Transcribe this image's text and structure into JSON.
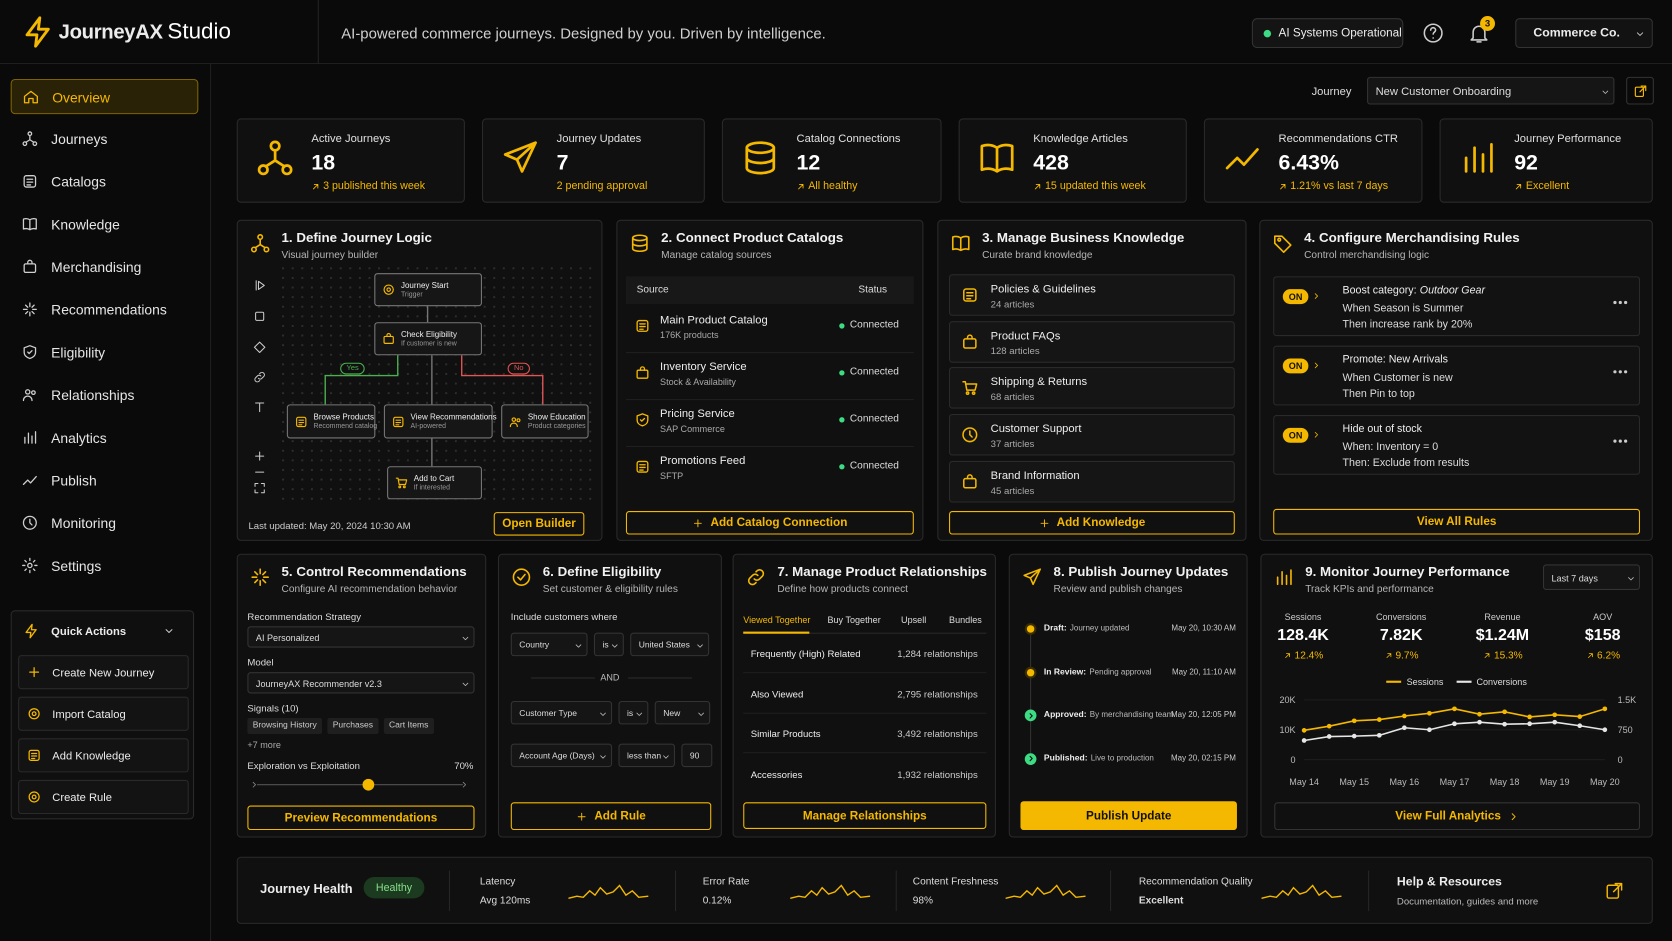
{
  "header": {
    "brand": "JourneyAX",
    "product": "Studio",
    "tagline": "AI-powered commerce journeys. Designed by you. Driven by intelligence.",
    "status": "AI Systems Operational",
    "notifications": "3",
    "account": "Commerce Co."
  },
  "sidebar": {
    "nav": [
      "Overview",
      "Journeys",
      "Catalogs",
      "Knowledge",
      "Merchandising",
      "Recommendations",
      "Eligibility",
      "Relationships",
      "Analytics",
      "Publish",
      "Monitoring",
      "Settings"
    ],
    "quick_actions": {
      "title": "Quick Actions",
      "items": [
        "Create New Journey",
        "Import Catalog",
        "Add Knowledge",
        "Create Rule"
      ]
    }
  },
  "journey_selector": {
    "label": "Journey",
    "value": "New Customer Onboarding"
  },
  "kpis": [
    {
      "label": "Active Journeys",
      "value": "18",
      "note": "3 published this week"
    },
    {
      "label": "Journey Updates",
      "value": "7",
      "note": "2 pending approval"
    },
    {
      "label": "Catalog Connections",
      "value": "12",
      "note": "All healthy"
    },
    {
      "label": "Knowledge Articles",
      "value": "428",
      "note": "15 updated this week"
    },
    {
      "label": "Recommendations CTR",
      "value": "6.43%",
      "note": "1.21% vs last 7 days"
    },
    {
      "label": "Journey Performance",
      "value": "92",
      "note": "Excellent"
    }
  ],
  "journey_logic": {
    "title": "1. Define Journey Logic",
    "subtitle": "Visual journey builder",
    "nodes": [
      {
        "title": "Journey Start",
        "subtitle": "Trigger"
      },
      {
        "title": "Check Eligibility",
        "subtitle": "If customer is new"
      },
      {
        "title": "Browse Products",
        "subtitle": "Recommend catalog"
      },
      {
        "title": "View Recommendations",
        "subtitle": "AI-powered"
      },
      {
        "title": "Show Education",
        "subtitle": "Product categories"
      },
      {
        "title": "Add to Cart",
        "subtitle": "If interested"
      }
    ],
    "edge_labels": [
      "Yes",
      "No"
    ],
    "updated": "Last updated: May 20, 2024 10:30 AM",
    "button": "Open Builder"
  },
  "catalogs": {
    "title": "2. Connect Product Catalogs",
    "subtitle": "Manage catalog sources",
    "columns": [
      "Source",
      "Status"
    ],
    "rows": [
      {
        "name": "Main Product Catalog",
        "detail": "176K products",
        "status": "Connected"
      },
      {
        "name": "Inventory Service",
        "detail": "Stock & Availability",
        "status": "Connected"
      },
      {
        "name": "Pricing Service",
        "detail": "SAP Commerce",
        "status": "Connected"
      },
      {
        "name": "Promotions Feed",
        "detail": "SFTP",
        "status": "Connected"
      }
    ],
    "button": "Add Catalog Connection"
  },
  "knowledge": {
    "title": "3. Manage Business Knowledge",
    "subtitle": "Curate brand knowledge",
    "items": [
      {
        "name": "Policies & Guidelines",
        "count": "24 articles"
      },
      {
        "name": "Product FAQs",
        "count": "128 articles"
      },
      {
        "name": "Shipping & Returns",
        "count": "68 articles"
      },
      {
        "name": "Customer Support",
        "count": "37 articles"
      },
      {
        "name": "Brand Information",
        "count": "45 articles"
      }
    ],
    "button": "Add Knowledge"
  },
  "merchandising": {
    "title": "4. Configure Merchandising Rules",
    "subtitle": "Control merchandising logic",
    "rules": [
      {
        "toggle": "ON",
        "title": "Boost category:",
        "title_emphasis": "Outdoor Gear",
        "condition": "When Season is Summer",
        "action": "Then increase rank by 20%"
      },
      {
        "toggle": "ON",
        "title": "Promote: New Arrivals",
        "condition": "When Customer is new",
        "action": "Then Pin to top"
      },
      {
        "toggle": "ON",
        "title": "Hide out of stock",
        "condition": "When: Inventory = 0",
        "action": "Then: Exclude from results"
      }
    ],
    "button": "View All Rules"
  },
  "recommendations": {
    "title": "5. Control Recommendations",
    "subtitle": "Configure AI recommendation behavior",
    "strategy_label": "Recommendation Strategy",
    "strategy": "AI Personalized",
    "model_label": "Model",
    "model": "JourneyAX Recommender v2.3",
    "signals_label": "Signals (10)",
    "signals": [
      "Browsing History",
      "Purchases",
      "Cart Items"
    ],
    "more": "+7 more",
    "balance_label": "Exploration vs Exploitation",
    "balance": "70%",
    "button": "Preview Recommendations"
  },
  "eligibility": {
    "title": "6. Define Eligibility",
    "subtitle": "Set customer & eligibility rules",
    "intro": "Include customers where",
    "conditions": [
      [
        "Country",
        "is",
        "United States"
      ],
      [
        "Customer Type",
        "is",
        "New"
      ],
      [
        "Account Age (Days)",
        "less than",
        "90"
      ]
    ],
    "joiner": "AND",
    "button": "Add Rule"
  },
  "relationships": {
    "title": "7. Manage Product Relationships",
    "subtitle": "Define how products connect",
    "tabs": [
      "Viewed Together",
      "Buy Together",
      "Upsell",
      "Bundles"
    ],
    "rows": [
      {
        "name": "Frequently (High) Related",
        "count": "1,284 relationships"
      },
      {
        "name": "Also Viewed",
        "count": "2,795 relationships"
      },
      {
        "name": "Similar Products",
        "count": "3,492 relationships"
      },
      {
        "name": "Accessories",
        "count": "1,932 relationships"
      }
    ],
    "button": "Manage Relationships"
  },
  "publish": {
    "title": "8. Publish Journey Updates",
    "subtitle": "Review and publish changes",
    "steps": [
      {
        "status": "Draft:",
        "detail": "Journey updated",
        "time": "May 20, 10:30 AM"
      },
      {
        "status": "In Review:",
        "detail": "Pending approval",
        "time": "May 20, 11:10 AM"
      },
      {
        "status": "Approved:",
        "detail": "By merchandising team",
        "time": "May 20, 12:05 PM"
      },
      {
        "status": "Published:",
        "detail": "Live to production",
        "time": "May 20, 02:15 PM"
      }
    ],
    "button": "Publish Update"
  },
  "performance": {
    "title": "9. Monitor Journey Performance",
    "subtitle": "Track KPIs and performance",
    "period": "Last 7 days",
    "stats": [
      {
        "label": "Sessions",
        "value": "128.4K",
        "change": "12.4%"
      },
      {
        "label": "Conversions",
        "value": "7.82K",
        "change": "9.7%"
      },
      {
        "label": "Revenue",
        "value": "$1.24M",
        "change": "15.3%"
      },
      {
        "label": "AOV",
        "value": "$158",
        "change": "6.2%"
      }
    ],
    "button": "View Full Analytics"
  },
  "chart_data": {
    "type": "line",
    "categories": [
      "May 14",
      null,
      "May 15",
      null,
      "May 16",
      null,
      "May 17",
      null,
      "May 18",
      null,
      "May 19",
      null,
      "May 20"
    ],
    "series": [
      {
        "name": "Sessions",
        "color": "#f5b800",
        "values": [
          9800,
          11200,
          13000,
          13400,
          14600,
          15500,
          17000,
          15200,
          16000,
          14300,
          15000,
          14400,
          17000
        ]
      },
      {
        "name": "Conversions",
        "color": "#e6e6e6",
        "axis": "y2",
        "values": [
          480,
          580,
          590,
          610,
          800,
          750,
          900,
          940,
          890,
          900,
          940,
          850,
          750
        ]
      }
    ],
    "ylim": [
      0,
      20000
    ],
    "yticks": [
      0,
      {
        "value": 10000,
        "label": "10K"
      },
      {
        "value": 20000,
        "label": "20K"
      }
    ],
    "y2lim": [
      0,
      1500
    ],
    "y2ticks": [
      0,
      750,
      {
        "value": 1500,
        "label": "1.5K"
      }
    ],
    "grid": true
  },
  "health": {
    "title": "Journey Health",
    "status": "Healthy",
    "metrics": [
      {
        "label": "Latency",
        "value": "Avg 120ms"
      },
      {
        "label": "Error Rate",
        "value": "0.12%"
      },
      {
        "label": "Content Freshness",
        "value": "98%"
      },
      {
        "label": "Recommendation Quality",
        "value": "Excellent"
      }
    ],
    "help_title": "Help & Resources",
    "help_subtitle": "Documentation, guides and more"
  }
}
